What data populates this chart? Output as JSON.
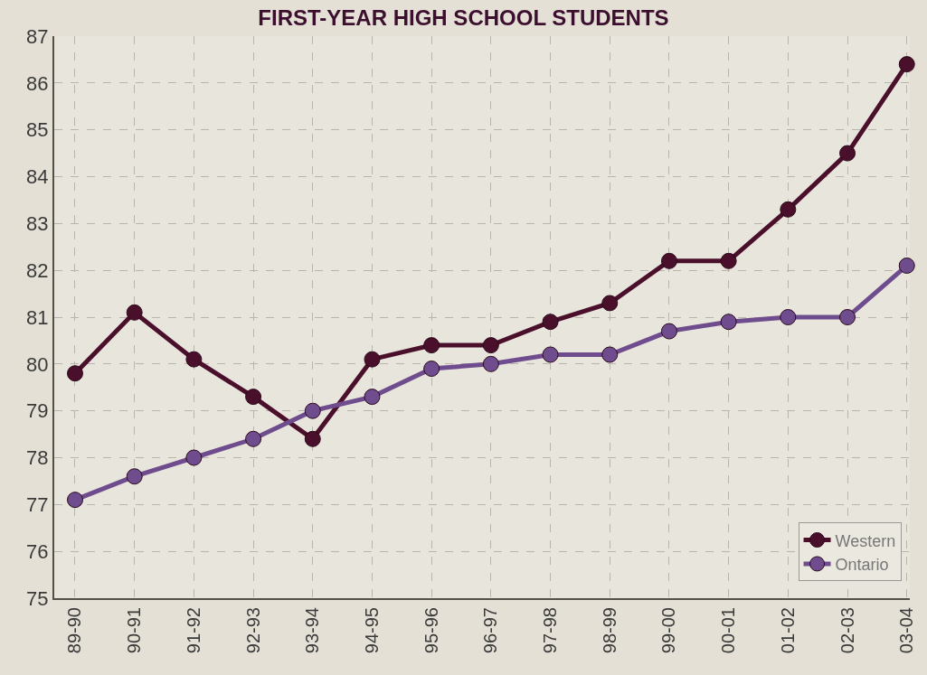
{
  "chart_data": {
    "type": "line",
    "title": "FIRST-YEAR HIGH SCHOOL STUDENTS",
    "categories": [
      "89-90",
      "90-91",
      "91-92",
      "92-93",
      "93-94",
      "94-95",
      "95-96",
      "96-97",
      "97-98",
      "98-99",
      "99-00",
      "00-01",
      "01-02",
      "02-03",
      "03-04"
    ],
    "series": [
      {
        "name": "Western",
        "color": "#4a0f2a",
        "values": [
          79.8,
          81.1,
          80.1,
          79.3,
          78.4,
          80.1,
          80.4,
          80.4,
          80.9,
          81.3,
          82.2,
          82.2,
          83.3,
          84.5,
          86.4
        ]
      },
      {
        "name": "Ontario",
        "color": "#6f4c8e",
        "values": [
          77.1,
          77.6,
          78.0,
          78.4,
          79.0,
          79.3,
          79.9,
          80.0,
          80.2,
          80.2,
          80.7,
          80.9,
          81.0,
          81.0,
          82.1
        ]
      }
    ],
    "ylim": [
      75,
      87
    ],
    "yticks": [
      75,
      76,
      77,
      78,
      79,
      80,
      81,
      82,
      83,
      84,
      85,
      86,
      87
    ],
    "grid": true,
    "legend": "bottom right",
    "marker": "circle",
    "line_style": "solid"
  }
}
